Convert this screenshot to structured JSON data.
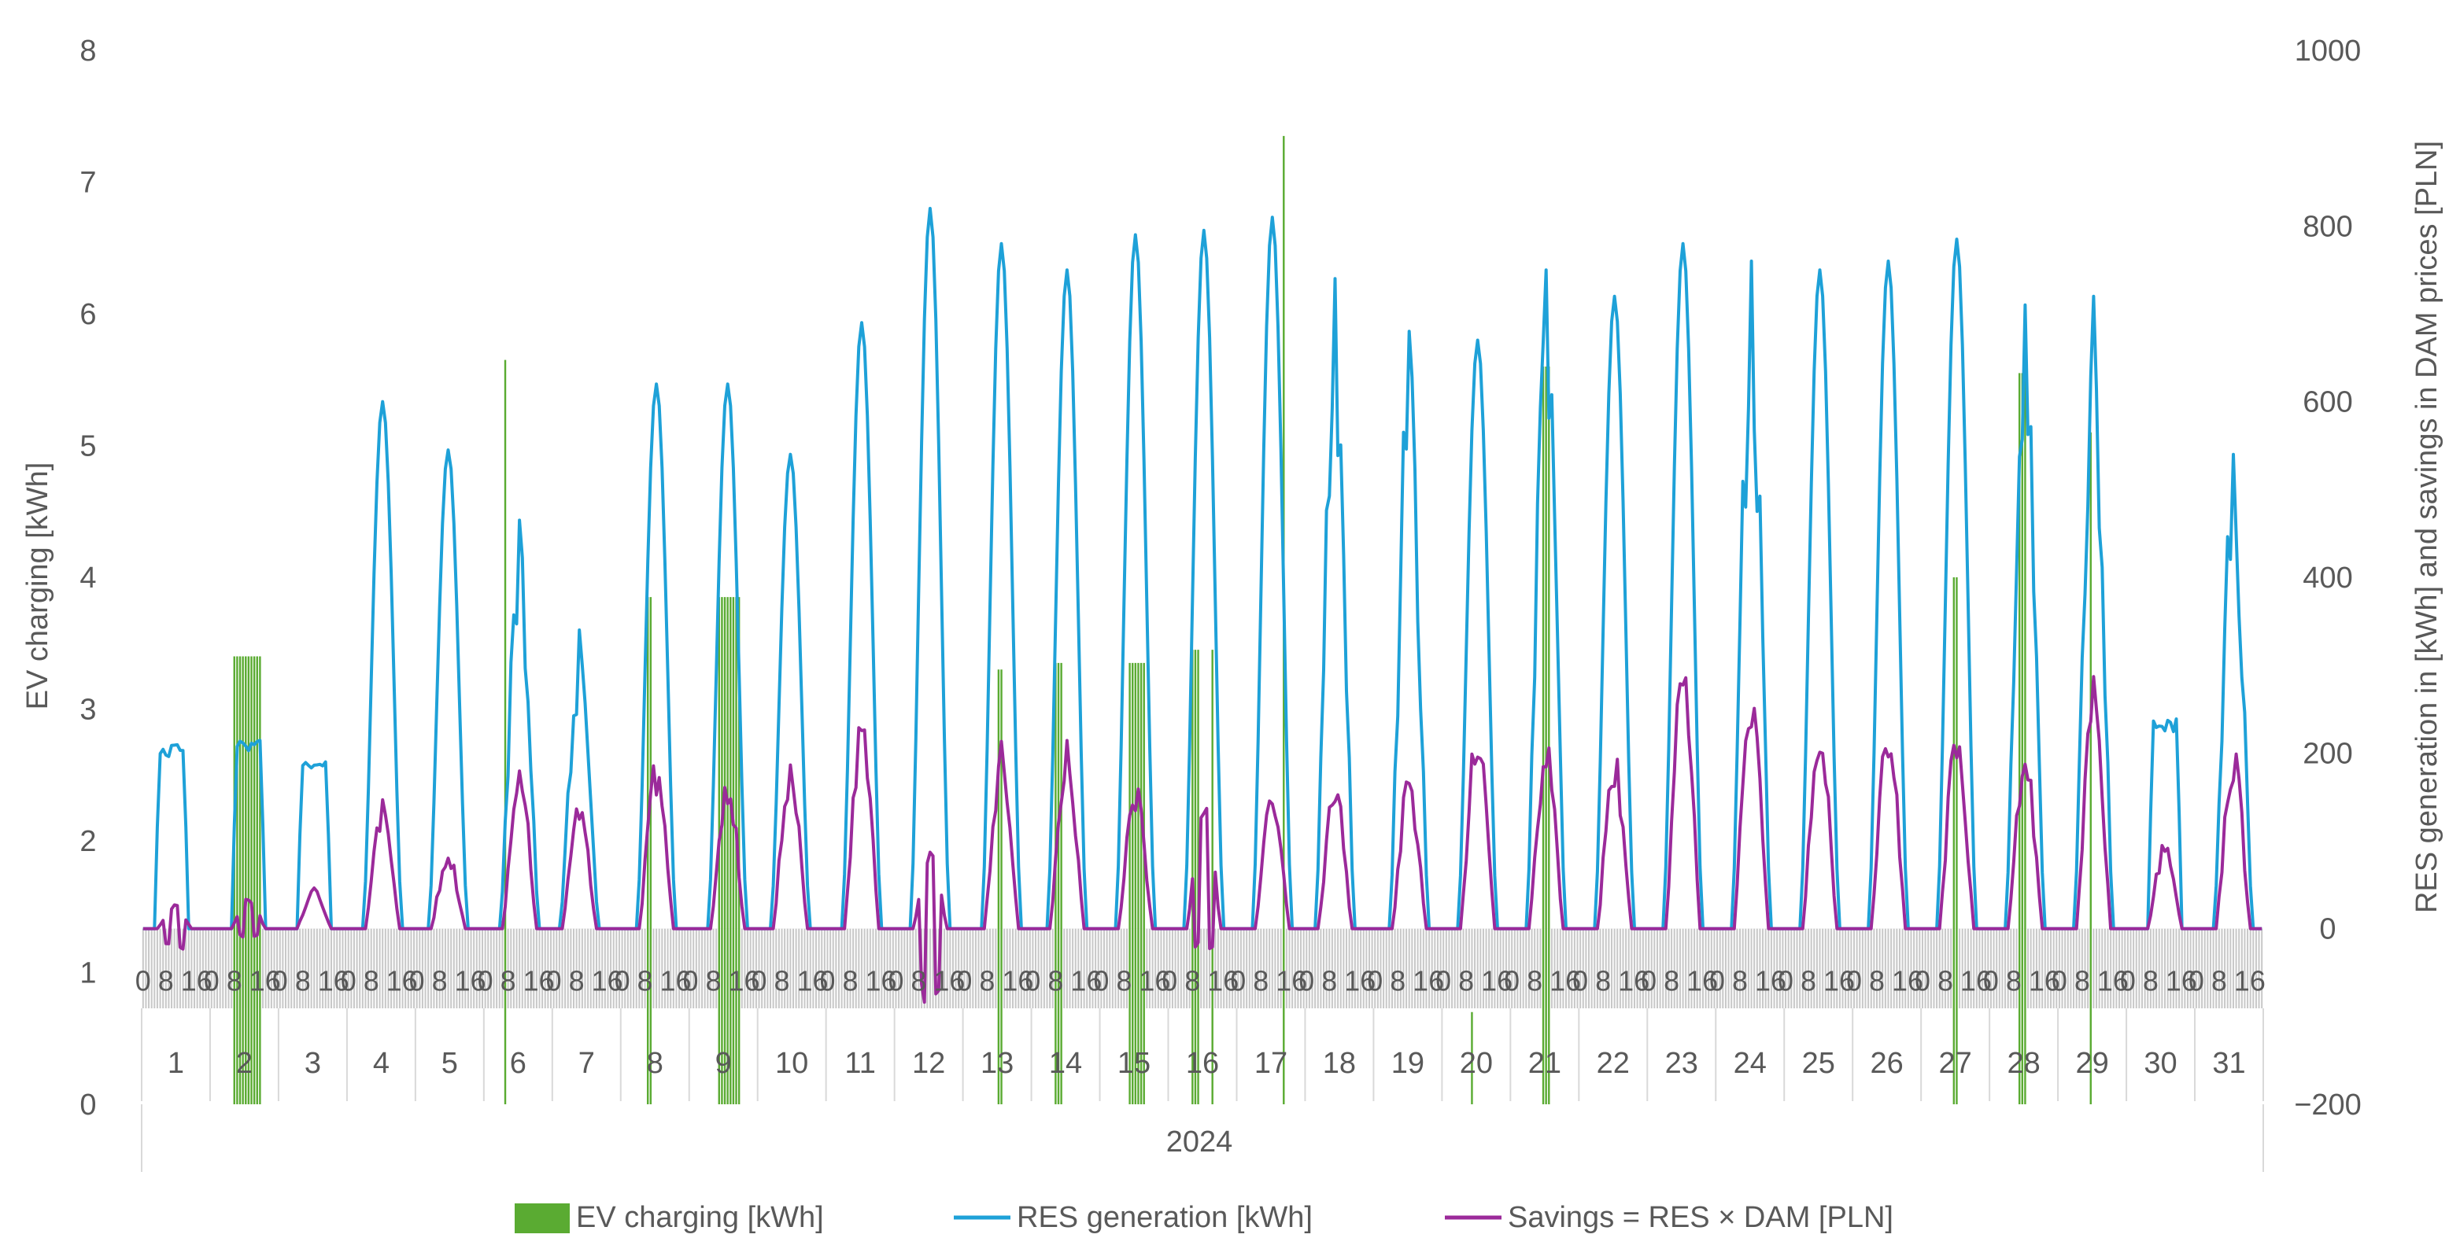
{
  "chart_data": {
    "type": "bar+line",
    "year_label": "2024",
    "day_labels": [
      "1",
      "2",
      "3",
      "4",
      "5",
      "6",
      "7",
      "8",
      "9",
      "10",
      "11",
      "12",
      "13",
      "14",
      "15",
      "16",
      "17",
      "18",
      "19",
      "20",
      "21",
      "22",
      "23",
      "24",
      "25",
      "26",
      "27",
      "28",
      "29",
      "30",
      "31"
    ],
    "hour_tick_labels": [
      "0",
      "8",
      "16"
    ],
    "left_axis": {
      "label": "EV charging [kWh]",
      "ylim": [
        0,
        8
      ],
      "ticks": [
        "0",
        "1",
        "2",
        "3",
        "4",
        "5",
        "6",
        "7",
        "8"
      ]
    },
    "right_axis": {
      "label": "RES generation in [kWh] and savings in DAM prices [PLN]",
      "ylim": [
        -200,
        1000
      ],
      "ticks": [
        "−200",
        "0",
        "200",
        "400",
        "600",
        "800",
        "1000"
      ]
    },
    "colors": {
      "ev": "#5aab32",
      "res": "#1ea1d8",
      "savings": "#9b2a9a",
      "axis_text": "#595959",
      "grid_band": "#c8c8c8"
    },
    "series": [
      {
        "name": "EV charging [kWh]",
        "axis": "left",
        "kind": "bar",
        "events": [
          {
            "day": 2,
            "start_hour": 8,
            "end_hour": 18,
            "value": 3.4
          },
          {
            "day": 6,
            "start_hour": 7,
            "end_hour": 8,
            "value": 5.65
          },
          {
            "day": 8,
            "start_hour": 9,
            "end_hour": 11,
            "value": 3.85
          },
          {
            "day": 9,
            "start_hour": 10,
            "end_hour": 18,
            "value": 3.85
          },
          {
            "day": 13,
            "start_hour": 12,
            "end_hour": 14,
            "value": 3.3
          },
          {
            "day": 14,
            "start_hour": 8,
            "end_hour": 11,
            "value": 3.35
          },
          {
            "day": 15,
            "start_hour": 10,
            "end_hour": 16,
            "value": 3.35
          },
          {
            "day": 16,
            "start_hour": 8,
            "end_hour": 11,
            "value": 3.45
          },
          {
            "day": 16,
            "start_hour": 15,
            "end_hour": 16,
            "value": 3.45
          },
          {
            "day": 17,
            "start_hour": 16,
            "end_hour": 17,
            "value": 7.35
          },
          {
            "day": 20,
            "start_hour": 10,
            "end_hour": 11,
            "value": 0.7
          },
          {
            "day": 21,
            "start_hour": 11,
            "end_hour": 14,
            "value": 5.6
          },
          {
            "day": 27,
            "start_hour": 11,
            "end_hour": 13,
            "value": 4.0
          },
          {
            "day": 28,
            "start_hour": 10,
            "end_hour": 13,
            "value": 5.55
          },
          {
            "day": 29,
            "start_hour": 11,
            "end_hour": 12,
            "value": 5.1
          }
        ]
      },
      {
        "name": "RES generation [kWh]",
        "axis": "right",
        "kind": "line",
        "daily_peaks": [
          210,
          215,
          195,
          600,
          545,
          465,
          340,
          620,
          620,
          540,
          690,
          820,
          780,
          750,
          790,
          795,
          810,
          740,
          680,
          670,
          750,
          720,
          780,
          760,
          750,
          760,
          785,
          710,
          720,
          240,
          540
        ],
        "peak_hours": [
          10,
          13,
          12,
          12,
          11,
          12,
          9,
          12,
          13,
          11,
          12,
          12,
          13,
          12,
          12,
          12,
          12,
          10,
          12,
          12,
          12,
          12,
          12,
          12,
          12,
          12,
          12,
          12,
          12,
          13,
          13
        ],
        "noisy_days": [
          6,
          7,
          18,
          19,
          21,
          24,
          28,
          29,
          31
        ]
      },
      {
        "name": "Savings = RES × DAM [PLN]",
        "axis": "right",
        "kind": "line",
        "daily_peaks": [
          30,
          40,
          50,
          150,
          90,
          190,
          150,
          200,
          180,
          200,
          255,
          100,
          215,
          215,
          170,
          160,
          160,
          170,
          180,
          250,
          225,
          205,
          330,
          300,
          245,
          260,
          250,
          215,
          295,
          100,
          210
        ],
        "daily_lows": [
          -25,
          -10,
          0,
          0,
          0,
          0,
          0,
          0,
          0,
          0,
          0,
          -105,
          0,
          0,
          0,
          -25,
          0,
          0,
          0,
          0,
          0,
          0,
          0,
          0,
          0,
          0,
          0,
          0,
          0,
          0,
          0
        ],
        "peak_hours": [
          11,
          13,
          12,
          12,
          11,
          12,
          9,
          12,
          13,
          11,
          12,
          12,
          13,
          12,
          12,
          12,
          12,
          10,
          12,
          12,
          12,
          12,
          12,
          12,
          12,
          12,
          12,
          12,
          12,
          13,
          13
        ]
      }
    ]
  }
}
